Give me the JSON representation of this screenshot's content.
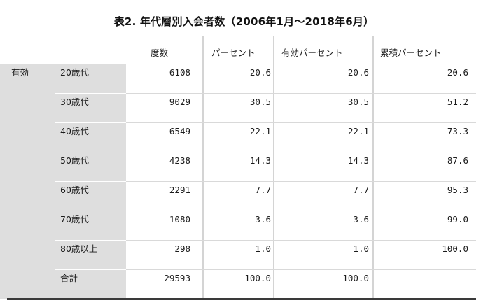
{
  "title": "表2. 年代層別入会者数（2006年1月～2018年6月）",
  "headers": [
    "度数",
    "パーセント",
    "有効パーセント",
    "累積パーセント"
  ],
  "group_label": "有効",
  "rows": [
    {
      "label": "20歳代",
      "freq": "6108",
      "pct": "20.6",
      "valid": "20.6",
      "cum": "20.6"
    },
    {
      "label": "30歳代",
      "freq": "9029",
      "pct": "30.5",
      "valid": "30.5",
      "cum": "51.2"
    },
    {
      "label": "40歳代",
      "freq": "6549",
      "pct": "22.1",
      "valid": "22.1",
      "cum": "73.3"
    },
    {
      "label": "50歳代",
      "freq": "4238",
      "pct": "14.3",
      "valid": "14.3",
      "cum": "87.6"
    },
    {
      "label": "60歳代",
      "freq": "2291",
      "pct": "7.7",
      "valid": "7.7",
      "cum": "95.3"
    },
    {
      "label": "70歳代",
      "freq": "1080",
      "pct": "3.6",
      "valid": "3.6",
      "cum": "99.0"
    },
    {
      "label": "80歳以上",
      "freq": "298",
      "pct": "1.0",
      "valid": "1.0",
      "cum": "100.0"
    },
    {
      "label": "合計",
      "freq": "29593",
      "pct": "100.0",
      "valid": "100.0",
      "cum": ""
    }
  ],
  "colors": {
    "label_bg": "#dedede",
    "border": "#d4d4d4",
    "text": "#1b1b1b"
  }
}
